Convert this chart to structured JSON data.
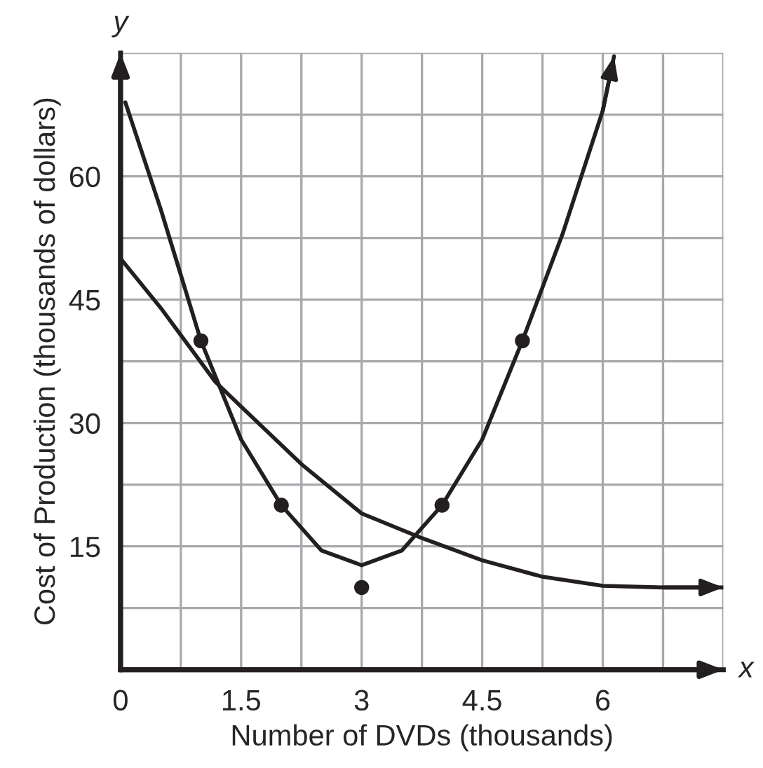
{
  "chart_data": {
    "type": "line",
    "xlabel": "Number of DVDs (thousands)",
    "ylabel": "Cost of Production (thousands of dollars)",
    "annotations": [
      "y",
      "x"
    ],
    "xlim": [
      0,
      7.5
    ],
    "ylim": [
      0,
      75
    ],
    "xticks": [
      0,
      {
        "value": 0.75,
        "label": null
      },
      1.5,
      {
        "value": 2.25,
        "label": null
      },
      3,
      {
        "value": 3.75,
        "label": null
      },
      4.5,
      {
        "value": 5.25,
        "label": null
      },
      6,
      {
        "value": 6.75,
        "label": null
      },
      {
        "value": 7.5,
        "label": null
      }
    ],
    "yticks": [
      {
        "value": 0,
        "label": null
      },
      {
        "value": 7.5,
        "label": null
      },
      15,
      {
        "value": 22.5,
        "label": null
      },
      30,
      {
        "value": 37.5,
        "label": null
      },
      45,
      {
        "value": 52.5,
        "label": null
      },
      60,
      {
        "value": 67.5,
        "label": null
      },
      {
        "value": 75,
        "label": null
      }
    ],
    "grid": true,
    "series": [
      {
        "type": "scatter",
        "color": "#231f20",
        "marker": "circle",
        "x": [
          1,
          2,
          3,
          4,
          5
        ],
        "values": [
          40,
          20,
          10,
          20,
          40
        ]
      },
      {
        "color": "#231f20",
        "line_style": "solid",
        "x": [
          0.06,
          0.5,
          1,
          1.5,
          2,
          2.5,
          3,
          3.5,
          4,
          4.5,
          5,
          5.5,
          6,
          6.14
        ],
        "values": [
          69,
          56,
          40,
          28,
          20,
          14.5,
          12.7,
          14.5,
          20,
          28,
          40,
          53,
          68,
          74.6
        ]
      },
      {
        "color": "#231f20",
        "line_style": "solid",
        "x": [
          0,
          0.5,
          1.18,
          1.5,
          2.25,
          3,
          3.75,
          4.5,
          5.25,
          6,
          6.75,
          7.5
        ],
        "values": [
          50,
          44,
          35,
          32,
          25,
          19,
          16,
          13.3,
          11.3,
          10.2,
          10,
          10
        ]
      }
    ]
  }
}
